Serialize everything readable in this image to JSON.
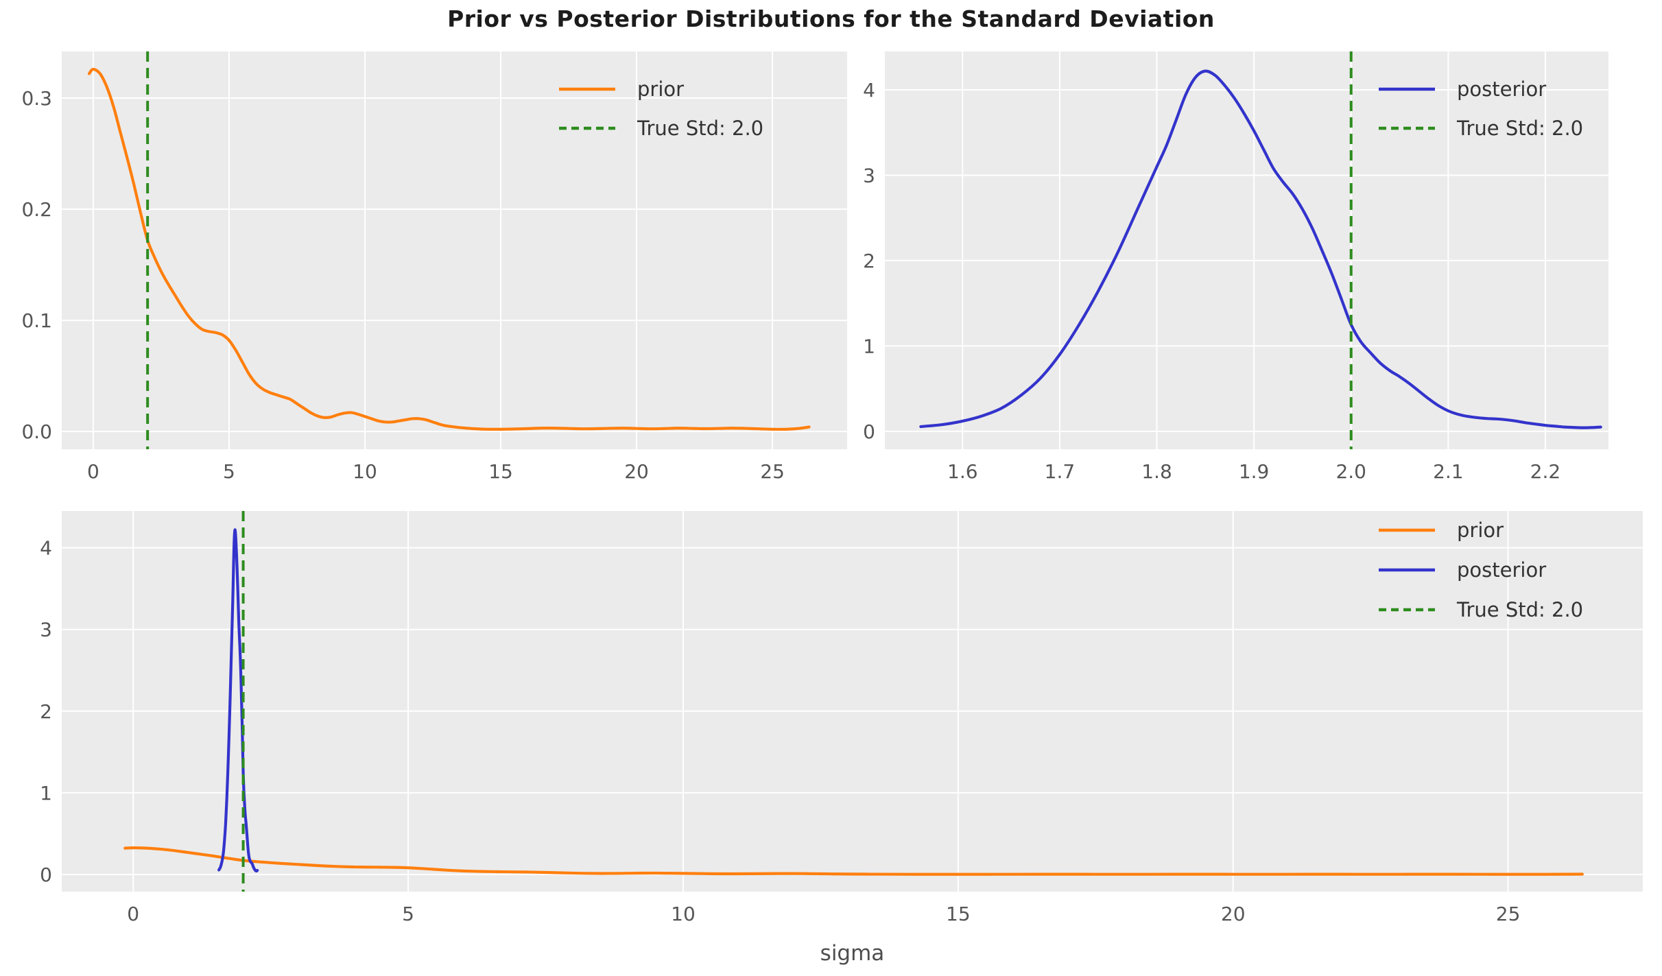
{
  "figure": {
    "title": "Prior vs Posterior Distributions for the Standard Deviation",
    "background_color": "#ffffff",
    "panel_background_color": "#ebebeb",
    "grid_color": "#ffffff",
    "tick_label_color": "#555555",
    "axis_label_color": "#4d4d4d",
    "legend_text_color": "#333333",
    "title_color": "#1c1c1c"
  },
  "colors": {
    "prior": "#ff7f0e",
    "posterior": "#3333cc",
    "true_std": "#2d8c1e"
  },
  "chart_data": {
    "type": "line",
    "title": "Prior vs Posterior Distributions for the Standard Deviation",
    "point_sets": {
      "prior": [
        [
          -0.15,
          0.322
        ],
        [
          0.0,
          0.326
        ],
        [
          0.25,
          0.322
        ],
        [
          0.5,
          0.31
        ],
        [
          0.75,
          0.292
        ],
        [
          1.0,
          0.269
        ],
        [
          1.25,
          0.246
        ],
        [
          1.5,
          0.222
        ],
        [
          1.75,
          0.196
        ],
        [
          2.0,
          0.172
        ],
        [
          2.25,
          0.157
        ],
        [
          2.5,
          0.144
        ],
        [
          2.75,
          0.133
        ],
        [
          3.0,
          0.123
        ],
        [
          3.25,
          0.113
        ],
        [
          3.5,
          0.104
        ],
        [
          3.75,
          0.097
        ],
        [
          4.0,
          0.092
        ],
        [
          4.25,
          0.09
        ],
        [
          4.5,
          0.089
        ],
        [
          4.75,
          0.087
        ],
        [
          5.0,
          0.082
        ],
        [
          5.25,
          0.073
        ],
        [
          5.5,
          0.062
        ],
        [
          5.75,
          0.051
        ],
        [
          6.0,
          0.043
        ],
        [
          6.25,
          0.038
        ],
        [
          6.5,
          0.035
        ],
        [
          6.75,
          0.033
        ],
        [
          7.0,
          0.031
        ],
        [
          7.25,
          0.029
        ],
        [
          7.5,
          0.025
        ],
        [
          7.75,
          0.021
        ],
        [
          8.0,
          0.017
        ],
        [
          8.25,
          0.014
        ],
        [
          8.5,
          0.0125
        ],
        [
          8.75,
          0.013
        ],
        [
          9.0,
          0.015
        ],
        [
          9.25,
          0.0165
        ],
        [
          9.5,
          0.017
        ],
        [
          9.75,
          0.0155
        ],
        [
          10.0,
          0.0135
        ],
        [
          10.25,
          0.0115
        ],
        [
          10.5,
          0.0095
        ],
        [
          10.75,
          0.0085
        ],
        [
          11.0,
          0.0085
        ],
        [
          11.25,
          0.0095
        ],
        [
          11.5,
          0.0105
        ],
        [
          11.75,
          0.0115
        ],
        [
          12.0,
          0.0115
        ],
        [
          12.25,
          0.0105
        ],
        [
          12.5,
          0.0085
        ],
        [
          12.75,
          0.0065
        ],
        [
          13.0,
          0.005
        ],
        [
          13.5,
          0.0035
        ],
        [
          14.0,
          0.0025
        ],
        [
          14.5,
          0.002
        ],
        [
          15.0,
          0.002
        ],
        [
          15.5,
          0.0022
        ],
        [
          16.0,
          0.0026
        ],
        [
          16.5,
          0.003
        ],
        [
          17.0,
          0.003
        ],
        [
          17.5,
          0.0027
        ],
        [
          18.0,
          0.0024
        ],
        [
          18.5,
          0.0025
        ],
        [
          19.0,
          0.0028
        ],
        [
          19.5,
          0.003
        ],
        [
          20.0,
          0.0027
        ],
        [
          20.5,
          0.0024
        ],
        [
          21.0,
          0.0026
        ],
        [
          21.5,
          0.003
        ],
        [
          22.0,
          0.0028
        ],
        [
          22.5,
          0.0025
        ],
        [
          23.0,
          0.0027
        ],
        [
          23.5,
          0.003
        ],
        [
          24.0,
          0.0028
        ],
        [
          24.5,
          0.0024
        ],
        [
          25.0,
          0.002
        ],
        [
          25.5,
          0.002
        ],
        [
          26.0,
          0.0028
        ],
        [
          26.35,
          0.004
        ]
      ],
      "posterior": [
        [
          1.557,
          0.055
        ],
        [
          1.58,
          0.08
        ],
        [
          1.6,
          0.12
        ],
        [
          1.62,
          0.18
        ],
        [
          1.64,
          0.27
        ],
        [
          1.66,
          0.42
        ],
        [
          1.68,
          0.62
        ],
        [
          1.7,
          0.9
        ],
        [
          1.72,
          1.25
        ],
        [
          1.74,
          1.65
        ],
        [
          1.76,
          2.1
        ],
        [
          1.78,
          2.6
        ],
        [
          1.79,
          2.85
        ],
        [
          1.8,
          3.1
        ],
        [
          1.81,
          3.35
        ],
        [
          1.82,
          3.65
        ],
        [
          1.83,
          3.95
        ],
        [
          1.84,
          4.15
        ],
        [
          1.85,
          4.22
        ],
        [
          1.86,
          4.17
        ],
        [
          1.87,
          4.05
        ],
        [
          1.88,
          3.9
        ],
        [
          1.89,
          3.72
        ],
        [
          1.9,
          3.52
        ],
        [
          1.91,
          3.3
        ],
        [
          1.92,
          3.08
        ],
        [
          1.93,
          2.92
        ],
        [
          1.94,
          2.78
        ],
        [
          1.95,
          2.6
        ],
        [
          1.96,
          2.38
        ],
        [
          1.97,
          2.12
        ],
        [
          1.98,
          1.85
        ],
        [
          1.99,
          1.55
        ],
        [
          2.0,
          1.25
        ],
        [
          2.01,
          1.05
        ],
        [
          2.02,
          0.92
        ],
        [
          2.03,
          0.8
        ],
        [
          2.04,
          0.71
        ],
        [
          2.05,
          0.64
        ],
        [
          2.06,
          0.56
        ],
        [
          2.07,
          0.47
        ],
        [
          2.08,
          0.38
        ],
        [
          2.09,
          0.3
        ],
        [
          2.1,
          0.24
        ],
        [
          2.11,
          0.2
        ],
        [
          2.12,
          0.175
        ],
        [
          2.13,
          0.16
        ],
        [
          2.14,
          0.15
        ],
        [
          2.15,
          0.145
        ],
        [
          2.16,
          0.135
        ],
        [
          2.17,
          0.12
        ],
        [
          2.18,
          0.1
        ],
        [
          2.19,
          0.085
        ],
        [
          2.2,
          0.07
        ],
        [
          2.21,
          0.06
        ],
        [
          2.22,
          0.05
        ],
        [
          2.23,
          0.045
        ],
        [
          2.24,
          0.042
        ],
        [
          2.25,
          0.045
        ],
        [
          2.257,
          0.05
        ]
      ]
    },
    "panels": [
      {
        "id": "prior-only",
        "xlabel": "",
        "xlim": [
          -1.16,
          27.75
        ],
        "ylim": [
          -0.016,
          0.342
        ],
        "xticks": [
          0,
          5,
          10,
          15,
          20,
          25
        ],
        "xtick_labels": [
          "0",
          "5",
          "10",
          "15",
          "20",
          "25"
        ],
        "yticks": [
          0.0,
          0.1,
          0.2,
          0.3
        ],
        "ytick_labels": [
          "0.0",
          "0.1",
          "0.2",
          "0.3"
        ],
        "grid": true,
        "legend_position": "upper right",
        "series": [
          {
            "name": "prior",
            "color": "#ff7f0e",
            "style": "solid",
            "points": "prior"
          }
        ],
        "vline": {
          "x": 2.0,
          "label": "True Std: 2.0",
          "color": "#2d8c1e",
          "style": "dashed"
        }
      },
      {
        "id": "posterior-only",
        "xlabel": "",
        "xlim": [
          1.52,
          2.265
        ],
        "ylim": [
          -0.21,
          4.45
        ],
        "xticks": [
          1.6,
          1.7,
          1.8,
          1.9,
          2.0,
          2.1,
          2.2
        ],
        "xtick_labels": [
          "1.6",
          "1.7",
          "1.8",
          "1.9",
          "2.0",
          "2.1",
          "2.2"
        ],
        "yticks": [
          0,
          1,
          2,
          3,
          4
        ],
        "ytick_labels": [
          "0",
          "1",
          "2",
          "3",
          "4"
        ],
        "grid": true,
        "legend_position": "upper right",
        "series": [
          {
            "name": "posterior",
            "color": "#3333cc",
            "style": "solid",
            "points": "posterior"
          }
        ],
        "vline": {
          "x": 2.0,
          "label": "True Std: 2.0",
          "color": "#2d8c1e",
          "style": "dashed"
        }
      },
      {
        "id": "combined",
        "xlabel": "sigma",
        "xlim": [
          -1.3,
          27.45
        ],
        "ylim": [
          -0.21,
          4.45
        ],
        "xticks": [
          0,
          5,
          10,
          15,
          20,
          25
        ],
        "xtick_labels": [
          "0",
          "5",
          "10",
          "15",
          "20",
          "25"
        ],
        "yticks": [
          0,
          1,
          2,
          3,
          4
        ],
        "ytick_labels": [
          "0",
          "1",
          "2",
          "3",
          "4"
        ],
        "grid": true,
        "legend_position": "upper right",
        "series": [
          {
            "name": "prior",
            "color": "#ff7f0e",
            "style": "solid",
            "points": "prior"
          },
          {
            "name": "posterior",
            "color": "#3333cc",
            "style": "solid",
            "points": "posterior"
          }
        ],
        "vline": {
          "x": 2.0,
          "label": "True Std: 2.0",
          "color": "#2d8c1e",
          "style": "dashed"
        }
      }
    ]
  }
}
